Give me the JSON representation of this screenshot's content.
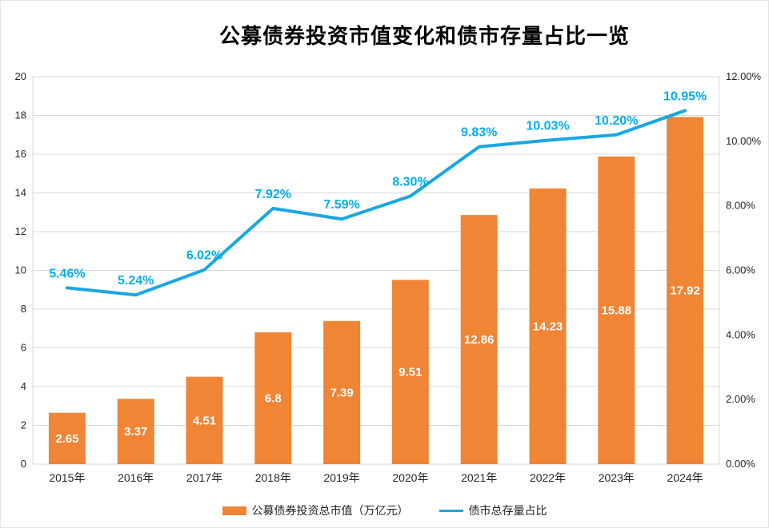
{
  "title": "公募债券投资市值变化和债市存量占比一览",
  "legend": {
    "bar_label": "公募债券投资总市值（万亿元）",
    "line_label": "债市总存量占比"
  },
  "colors": {
    "bar": "#F08536",
    "bar_label_text": "#FFFFFF",
    "line": "#1AA7E1",
    "line_label": "#00AEEF",
    "grid": "#D9D9D9",
    "axis_text": "#262626",
    "title_text": "#000000"
  },
  "chart_data": {
    "type": "combo (bar + line)",
    "title": "公募债券投资市值变化和债市存量占比一览",
    "categories": [
      "2015年",
      "2016年",
      "2017年",
      "2018年",
      "2019年",
      "2020年",
      "2021年",
      "2022年",
      "2023年",
      "2024年"
    ],
    "series": [
      {
        "name": "公募债券投资总市值（万亿元）",
        "type": "bar",
        "axis": "left",
        "values": [
          2.65,
          3.37,
          4.51,
          6.8,
          7.39,
          9.51,
          12.86,
          14.23,
          15.88,
          17.92
        ],
        "labels": [
          "2.65",
          "3.37",
          "4.51",
          "6.8",
          "7.39",
          "9.51",
          "12.86",
          "14.23",
          "15.88",
          "17.92"
        ]
      },
      {
        "name": "债市总存量占比",
        "type": "line",
        "axis": "right",
        "values": [
          5.46,
          5.24,
          6.02,
          7.92,
          7.59,
          8.3,
          9.83,
          10.03,
          10.2,
          10.95
        ],
        "labels": [
          "5.46%",
          "5.24%",
          "6.02%",
          "7.92%",
          "7.59%",
          "8.30%",
          "9.83%",
          "10.03%",
          "10.20%",
          "10.95%"
        ]
      }
    ],
    "left_axis": {
      "min": 0,
      "max": 20,
      "step": 2,
      "ticks": [
        "0",
        "2",
        "4",
        "6",
        "8",
        "10",
        "12",
        "14",
        "16",
        "18",
        "20"
      ]
    },
    "right_axis": {
      "min": 0,
      "max": 12,
      "step": 2,
      "ticks": [
        "0.00%",
        "2.00%",
        "4.00%",
        "6.00%",
        "8.00%",
        "10.00%",
        "12.00%"
      ]
    },
    "grid": true,
    "legend_position": "bottom"
  }
}
